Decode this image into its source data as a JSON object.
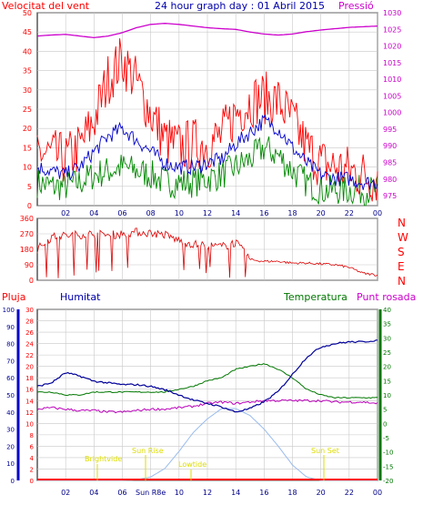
{
  "header": {
    "wind_title": "Velocitat del vent",
    "graph_title": "24 hour graph day : 01 Abril 2015",
    "pressure_title": "Pressió"
  },
  "bottom_header": {
    "rain": "Pluja",
    "humidity": "Humitat",
    "temperature": "Temperatura",
    "dewpoint": "Punt rosada"
  },
  "compass_letters": [
    "N",
    "W",
    "S",
    "E",
    "N"
  ],
  "annotations": {
    "brightvide": "Brightvide",
    "sunrise": "Sun Rise",
    "lowtide": "Lowtide",
    "sunset": "Sun Set",
    "sunrise_axis": "Sun R8e"
  },
  "colors": {
    "wind_max": "#ff0000",
    "wind_avg": "#0000cc",
    "wind_min": "#008800",
    "pressure": "#cc00cc",
    "direction": "#dd0000",
    "humidity": "#000099",
    "temperature": "#007700",
    "dewpoint": "#bb00bb",
    "solar": "#99bbee",
    "rain": "#ff0000",
    "annot": "#dddd00"
  },
  "chart_data": [
    {
      "type": "line",
      "title": "24 hour graph day : 01 Abril 2015",
      "x_ticks": [
        "02",
        "04",
        "06",
        "08",
        "10",
        "12",
        "14",
        "16",
        "18",
        "20",
        "22",
        "00"
      ],
      "y_left_label": "Velocitat del vent",
      "y_left_ticks": [
        0,
        5,
        10,
        15,
        20,
        25,
        30,
        35,
        40,
        45,
        50
      ],
      "ylim_left": [
        0,
        50
      ],
      "y_right_label": "Pressió",
      "y_right_ticks": [
        975,
        980,
        985,
        990,
        995,
        1000,
        1005,
        1010,
        1015,
        1020,
        1025,
        1030
      ],
      "ylim_right": [
        972,
        1030
      ],
      "x": [
        0,
        1,
        2,
        3,
        4,
        5,
        6,
        7,
        8,
        9,
        10,
        11,
        12,
        13,
        14,
        15,
        16,
        17,
        18,
        19,
        20,
        21,
        22,
        23,
        24
      ],
      "series": [
        {
          "name": "Velocitat del vent",
          "role": "max",
          "values": [
            14,
            13,
            12,
            15,
            22,
            33,
            38,
            32,
            24,
            17,
            15,
            16,
            16,
            18,
            24,
            27,
            28,
            27,
            22,
            15,
            11,
            10,
            9,
            8,
            7
          ]
        },
        {
          "name": "avg",
          "role": "avg",
          "values": [
            10,
            9,
            8,
            10,
            14,
            18,
            20,
            17,
            14,
            11,
            10,
            10,
            11,
            12,
            16,
            19,
            22,
            20,
            15,
            11,
            8,
            7,
            7,
            6,
            6
          ]
        },
        {
          "name": "min",
          "role": "min",
          "values": [
            6,
            5,
            5,
            6,
            8,
            9,
            10,
            9,
            8,
            6,
            6,
            6,
            7,
            8,
            10,
            12,
            15,
            13,
            9,
            6,
            4,
            4,
            4,
            4,
            4
          ]
        },
        {
          "name": "Pressió",
          "axis": "right",
          "values": [
            1023,
            1023.3,
            1023.5,
            1023,
            1022.5,
            1023,
            1024,
            1025.5,
            1026.5,
            1026.8,
            1026.5,
            1026,
            1025.5,
            1025.2,
            1025,
            1024.2,
            1023.6,
            1023.3,
            1023.6,
            1024.3,
            1024.8,
            1025.2,
            1025.6,
            1025.8,
            1026
          ]
        }
      ]
    },
    {
      "type": "line",
      "x_ticks": [
        "02",
        "04",
        "06",
        "08",
        "10",
        "12",
        "14",
        "16",
        "18",
        "20",
        "22",
        "00"
      ],
      "y_ticks": [
        0,
        90,
        180,
        270,
        360
      ],
      "ylim": [
        0,
        360
      ],
      "y_right_labels": [
        "N",
        "W",
        "S",
        "E",
        "N"
      ],
      "x": [
        0,
        1,
        2,
        3,
        4,
        5,
        6,
        7,
        8,
        9,
        10,
        11,
        12,
        13,
        14,
        15,
        16,
        17,
        18,
        19,
        20,
        21,
        22,
        23,
        24
      ],
      "series": [
        {
          "name": "direction",
          "values": [
            180,
            250,
            260,
            265,
            270,
            262,
            270,
            280,
            275,
            265,
            230,
            210,
            200,
            195,
            220,
            120,
            110,
            110,
            100,
            100,
            95,
            90,
            75,
            40,
            30
          ]
        }
      ]
    },
    {
      "type": "line",
      "x_ticks": [
        "02",
        "04",
        "06",
        "08",
        "10",
        "12",
        "14",
        "16",
        "18",
        "20",
        "22",
        "00"
      ],
      "y_left_humidity_ticks": [
        0,
        10,
        20,
        30,
        40,
        50,
        60,
        70,
        80,
        90,
        100
      ],
      "ylim_humidity": [
        0,
        100
      ],
      "y_left_rain_ticks": [
        0,
        2,
        4,
        6,
        8,
        10,
        12,
        14,
        16,
        18,
        20,
        22,
        24,
        26,
        28,
        30
      ],
      "ylim_rain": [
        0,
        30
      ],
      "y_right_ticks": [
        -20,
        -15,
        -10,
        -5,
        0,
        5,
        10,
        15,
        20,
        25,
        30,
        35,
        40
      ],
      "ylim_right": [
        -20,
        40
      ],
      "x": [
        0,
        1,
        2,
        3,
        4,
        5,
        6,
        7,
        8,
        9,
        10,
        11,
        12,
        13,
        14,
        15,
        16,
        17,
        18,
        19,
        20,
        21,
        22,
        23,
        24
      ],
      "series": [
        {
          "name": "Humitat",
          "values": [
            55,
            57,
            63,
            61,
            58,
            57,
            56,
            56,
            55,
            53,
            50,
            47,
            45,
            43,
            40,
            42,
            46,
            52,
            62,
            72,
            78,
            80,
            81,
            81,
            82
          ]
        },
        {
          "name": "Temperatura",
          "values": [
            11,
            11,
            10,
            10,
            11,
            11,
            11,
            11,
            11,
            11,
            12,
            13,
            15,
            16,
            19,
            20,
            21,
            19,
            16,
            12,
            10,
            9,
            9,
            9,
            9
          ]
        },
        {
          "name": "Punt rosada",
          "values": [
            5,
            5.5,
            5,
            4.5,
            4.5,
            4,
            4,
            4.5,
            5,
            5,
            5.5,
            6,
            7,
            7.5,
            7,
            7.5,
            8,
            8,
            8,
            8,
            8,
            7.5,
            7.5,
            7.5,
            7
          ]
        },
        {
          "name": "solar",
          "values": [
            0,
            0,
            0,
            0,
            0,
            0,
            0,
            0.3,
            2,
            7,
            17,
            28,
            36,
            42,
            42,
            38,
            30,
            20,
            9,
            2,
            0,
            0,
            0,
            0,
            0
          ]
        },
        {
          "name": "Pluja",
          "values": [
            0,
            0,
            0,
            0,
            0,
            0,
            0,
            0,
            0,
            0,
            0,
            0,
            0,
            0,
            0,
            0,
            0,
            0,
            0,
            0,
            0,
            0,
            0,
            0,
            0
          ]
        }
      ]
    }
  ]
}
